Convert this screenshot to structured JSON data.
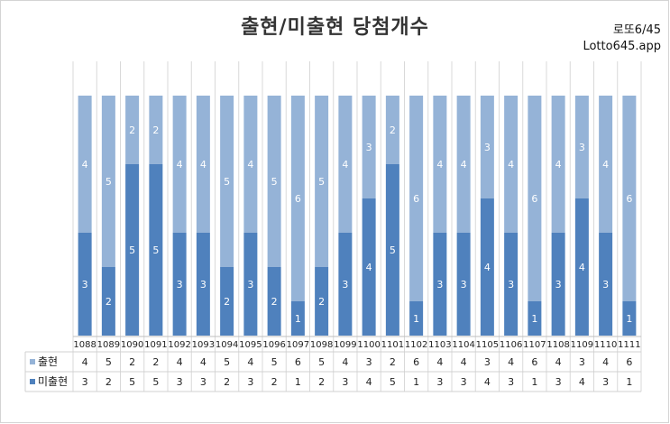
{
  "header": {
    "title": "출현/미출현 당첨개수",
    "badge": "로또6/45",
    "site": "Lotto645.app"
  },
  "chart_data": {
    "type": "bar",
    "stacked": true,
    "title": "출현/미출현 당첨개수",
    "categories": [
      "1088",
      "1089",
      "1090",
      "1091",
      "1092",
      "1093",
      "1094",
      "1095",
      "1096",
      "1097",
      "1098",
      "1099",
      "1100",
      "1101",
      "1102",
      "1103",
      "1104",
      "1105",
      "1106",
      "1107",
      "1108",
      "1109",
      "1110",
      "1111"
    ],
    "series": [
      {
        "name": "미출현",
        "color": "#4f81bd",
        "values": [
          3,
          2,
          5,
          5,
          3,
          3,
          2,
          3,
          2,
          1,
          2,
          3,
          4,
          5,
          1,
          3,
          3,
          4,
          3,
          1,
          3,
          4,
          3,
          1
        ]
      },
      {
        "name": "출현",
        "color": "#95b3d7",
        "values": [
          4,
          5,
          2,
          2,
          4,
          4,
          5,
          4,
          5,
          6,
          5,
          4,
          3,
          2,
          6,
          4,
          4,
          3,
          4,
          6,
          4,
          3,
          4,
          6
        ]
      }
    ],
    "ylim": [
      0,
      7
    ],
    "grid": true,
    "legend": "data-table"
  }
}
